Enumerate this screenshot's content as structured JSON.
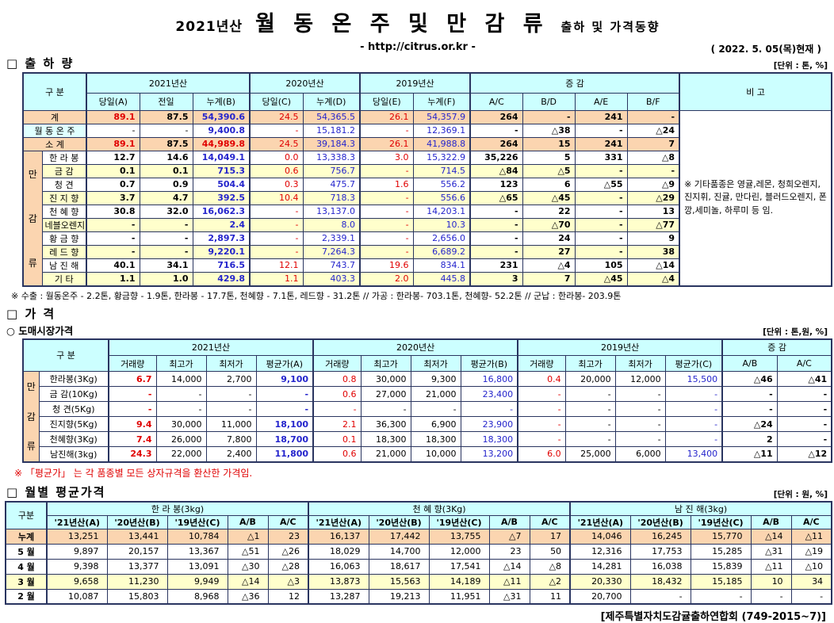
{
  "title": {
    "year": "2021년산",
    "main": "월 동 온 주 및 만 감 류",
    "sub": "출하 및 가격동향",
    "url": "- http://citrus.or.kr -",
    "date": "( 2022. 5. 05(목)현재 )"
  },
  "colors": {
    "header_bg": "#CCFFFF",
    "summary_bg": "#FBD5B0",
    "stripe_bg": "#FFFFCC",
    "winter_bg": "#E0FFFF",
    "value_blue": "#2424CC",
    "value_red": "#E00000"
  },
  "shipment": {
    "section": "□ 출 하 량",
    "unit": "[단위 : 톤, %]",
    "header": {
      "gubun": "구    분",
      "y2021": "2021년산",
      "y2020": "2020년산",
      "y2019": "2019년산",
      "changes": "증    감",
      "bigo": "비 고",
      "cols": [
        "당일(A)",
        "전일",
        "누계(B)",
        "당일(C)",
        "누계(D)",
        "당일(E)",
        "누계(F)",
        "A/C",
        "B/D",
        "A/E",
        "B/F"
      ]
    },
    "group_label": "만감류",
    "bigo_note": "※ 기타품종은 영귤,레몬, 청희오렌지, 진지휘, 진귤, 만다린, 블러드오렌지, 폰깡,세미놀, 하루미 등 임.",
    "rows": [
      {
        "label": "계",
        "kind": "total",
        "values": [
          "89.1",
          "87.5",
          "54,390.6",
          "24.5",
          "54,365.5",
          "26.1",
          "54,357.9",
          "264",
          "-",
          "241",
          "-"
        ]
      },
      {
        "label": "월 동 온 주",
        "kind": "winter",
        "values": [
          "-",
          "-",
          "9,400.8",
          "-",
          "15,181.2",
          "-",
          "12,369.1",
          "-",
          "△38",
          "-",
          "△24"
        ]
      },
      {
        "label": "소    계",
        "kind": "subtotal",
        "values": [
          "89.1",
          "87.5",
          "44,989.8",
          "24.5",
          "39,184.3",
          "26.1",
          "41,988.8",
          "264",
          "15",
          "241",
          "7"
        ]
      },
      {
        "label": "한 라 봉",
        "kind": "v",
        "values": [
          "12.7",
          "14.6",
          "14,049.1",
          "0.0",
          "13,338.3",
          "3.0",
          "15,322.9",
          "35,226",
          "5",
          "331",
          "△8"
        ]
      },
      {
        "label": "금    감",
        "kind": "v",
        "values": [
          "0.1",
          "0.1",
          "715.3",
          "0.6",
          "756.7",
          "-",
          "714.5",
          "△84",
          "△5",
          "-",
          "-"
        ]
      },
      {
        "label": "청    견",
        "kind": "v",
        "values": [
          "0.7",
          "0.9",
          "504.4",
          "0.3",
          "475.7",
          "1.6",
          "556.2",
          "123",
          "6",
          "△55",
          "△9"
        ]
      },
      {
        "label": "진 지 향",
        "kind": "v",
        "values": [
          "3.7",
          "4.7",
          "392.5",
          "10.4",
          "718.3",
          "-",
          "556.6",
          "△65",
          "△45",
          "-",
          "△29"
        ]
      },
      {
        "label": "천 혜 향",
        "kind": "v",
        "values": [
          "30.8",
          "32.0",
          "16,062.3",
          "-",
          "13,137.0",
          "-",
          "14,203.1",
          "-",
          "22",
          "-",
          "13"
        ]
      },
      {
        "label": "네블오렌지",
        "kind": "v",
        "values": [
          "-",
          "-",
          "2.4",
          "-",
          "8.0",
          "-",
          "10.3",
          "-",
          "△70",
          "-",
          "△77"
        ]
      },
      {
        "label": "황 금 향",
        "kind": "v",
        "values": [
          "-",
          "-",
          "2,897.3",
          "-",
          "2,339.1",
          "-",
          "2,656.0",
          "-",
          "24",
          "-",
          "9"
        ]
      },
      {
        "label": "레 드 향",
        "kind": "v",
        "values": [
          "-",
          "-",
          "9,220.1",
          "-",
          "7,264.3",
          "-",
          "6,689.2",
          "-",
          "27",
          "-",
          "38"
        ]
      },
      {
        "label": "남 진 해",
        "kind": "v",
        "values": [
          "40.1",
          "34.1",
          "716.5",
          "12.1",
          "743.7",
          "19.6",
          "834.1",
          "231",
          "△4",
          "105",
          "△14"
        ]
      },
      {
        "label": "기    타",
        "kind": "v",
        "values": [
          "1.1",
          "1.0",
          "429.8",
          "1.1",
          "403.3",
          "2.0",
          "445.8",
          "3",
          "7",
          "△45",
          "△4"
        ]
      }
    ],
    "footnote": "※ 수출 : 월동온주 - 2.2톤, 황금향 - 1.9톤, 한라봉 - 17.7톤,  천혜향 - 7.1톤,  레드향 - 31.2톤 // 가공 : 한라봉- 703.1톤, 천혜향- 52.2톤 // 군납 : 한라봉- 203.9톤"
  },
  "price": {
    "section": "□ 가     격",
    "sub_section": "○ 도매시장가격",
    "unit": "[단위 : 톤,원, %]",
    "header": {
      "gubun": "구    분",
      "y2021": "2021년산",
      "y2020": "2020년산",
      "y2019": "2019년산",
      "changes": "증  감",
      "cols": [
        "거래량",
        "최고가",
        "최저가",
        "평균가(A)",
        "거래량",
        "최고가",
        "최저가",
        "평균가(B)",
        "거래량",
        "최고가",
        "최저가",
        "평균가(C)",
        "A/B",
        "A/C"
      ]
    },
    "group_label": "만감류",
    "rows": [
      {
        "label": "한라봉(3Kg)",
        "values": [
          "6.7",
          "14,000",
          "2,700",
          "9,100",
          "0.8",
          "30,000",
          "9,300",
          "16,800",
          "0.4",
          "20,000",
          "12,000",
          "15,500",
          "△46",
          "△41"
        ]
      },
      {
        "label": "금 감(10Kg)",
        "values": [
          "-",
          "-",
          "-",
          "-",
          "0.6",
          "27,000",
          "21,000",
          "23,400",
          "-",
          "-",
          "-",
          "-",
          "-",
          "-"
        ]
      },
      {
        "label": "청  견(5Kg)",
        "values": [
          "-",
          "-",
          "-",
          "-",
          "-",
          "-",
          "-",
          "-",
          "-",
          "-",
          "-",
          "-",
          "-",
          "-"
        ]
      },
      {
        "label": "진지향(5Kg)",
        "values": [
          "9.4",
          "30,000",
          "11,000",
          "18,100",
          "2.1",
          "36,300",
          "6,900",
          "23,900",
          "-",
          "-",
          "-",
          "-",
          "△24",
          "-"
        ]
      },
      {
        "label": "천혜향(3Kg)",
        "values": [
          "7.4",
          "26,000",
          "7,800",
          "18,700",
          "0.1",
          "18,300",
          "18,300",
          "18,300",
          "-",
          "-",
          "-",
          "-",
          "2",
          "-"
        ]
      },
      {
        "label": "남진해(3kg)",
        "values": [
          "24.3",
          "22,000",
          "2,400",
          "11,800",
          "0.6",
          "21,000",
          "10,000",
          "13,200",
          "6.0",
          "25,000",
          "6,000",
          "13,400",
          "△11",
          "△12"
        ]
      }
    ],
    "footnote": "※  「평균가」 는 각 품종별 모든 상자규격을 환산한 가격임."
  },
  "monthly": {
    "section": "□ 월별 평균가격",
    "unit": "[단위 : 원, %]",
    "header": {
      "gubun": "구분",
      "products": [
        "한 라 봉(3kg)",
        "천 혜 향(3Kg)",
        "남 진 해(3kg)"
      ],
      "cols": [
        "'21년산(A)",
        "'20년산(B)",
        "'19년산(C)",
        "A/B",
        "A/C"
      ]
    },
    "rows": [
      {
        "label": "누계",
        "kind": "cum",
        "values": [
          "13,251",
          "13,441",
          "10,784",
          "△1",
          "23",
          "16,137",
          "17,442",
          "13,755",
          "△7",
          "17",
          "14,046",
          "16,245",
          "15,770",
          "△14",
          "△11"
        ]
      },
      {
        "label": "5 월",
        "kind": "m",
        "values": [
          "9,897",
          "20,157",
          "13,367",
          "△51",
          "△26",
          "18,029",
          "14,700",
          "12,000",
          "23",
          "50",
          "12,316",
          "17,753",
          "15,285",
          "△31",
          "△19"
        ]
      },
      {
        "label": "4 월",
        "kind": "m",
        "values": [
          "9,398",
          "13,377",
          "13,091",
          "△30",
          "△28",
          "16,063",
          "18,617",
          "17,541",
          "△14",
          "△8",
          "14,281",
          "16,038",
          "15,839",
          "△11",
          "△10"
        ]
      },
      {
        "label": "3 월",
        "kind": "hl",
        "values": [
          "9,658",
          "11,230",
          "9,949",
          "△14",
          "△3",
          "13,873",
          "15,563",
          "14,189",
          "△11",
          "△2",
          "20,330",
          "18,432",
          "15,185",
          "10",
          "34"
        ]
      },
      {
        "label": "2 월",
        "kind": "m",
        "values": [
          "10,087",
          "15,803",
          "8,968",
          "△36",
          "12",
          "13,287",
          "19,213",
          "11,951",
          "△31",
          "11",
          "20,700",
          "-",
          "-",
          "-",
          "-"
        ]
      }
    ]
  },
  "footer": {
    "text": "[제주특별자치도감귤출하연합회 (749-2015~7)]"
  }
}
